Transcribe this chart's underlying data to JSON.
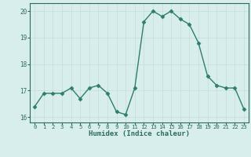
{
  "x": [
    0,
    1,
    2,
    3,
    4,
    5,
    6,
    7,
    8,
    9,
    10,
    11,
    12,
    13,
    14,
    15,
    16,
    17,
    18,
    19,
    20,
    21,
    22,
    23
  ],
  "y": [
    16.4,
    16.9,
    16.9,
    16.9,
    17.1,
    16.7,
    17.1,
    17.2,
    16.9,
    16.2,
    16.1,
    17.1,
    19.6,
    20.0,
    19.8,
    20.0,
    19.7,
    19.5,
    18.8,
    17.55,
    17.2,
    17.1,
    17.1,
    16.3
  ],
  "xlabel": "Humidex (Indice chaleur)",
  "ylim": [
    15.8,
    20.3
  ],
  "xlim": [
    -0.5,
    23.5
  ],
  "yticks": [
    16,
    17,
    18,
    19,
    20
  ],
  "xticks": [
    0,
    1,
    2,
    3,
    4,
    5,
    6,
    7,
    8,
    9,
    10,
    11,
    12,
    13,
    14,
    15,
    16,
    17,
    18,
    19,
    20,
    21,
    22,
    23
  ],
  "line_color": "#2e7d6e",
  "marker_color": "#2e7d6e",
  "bg_color": "#d8eeec",
  "grid_color": "#c4dcd9",
  "spine_color": "#2e6b5e"
}
